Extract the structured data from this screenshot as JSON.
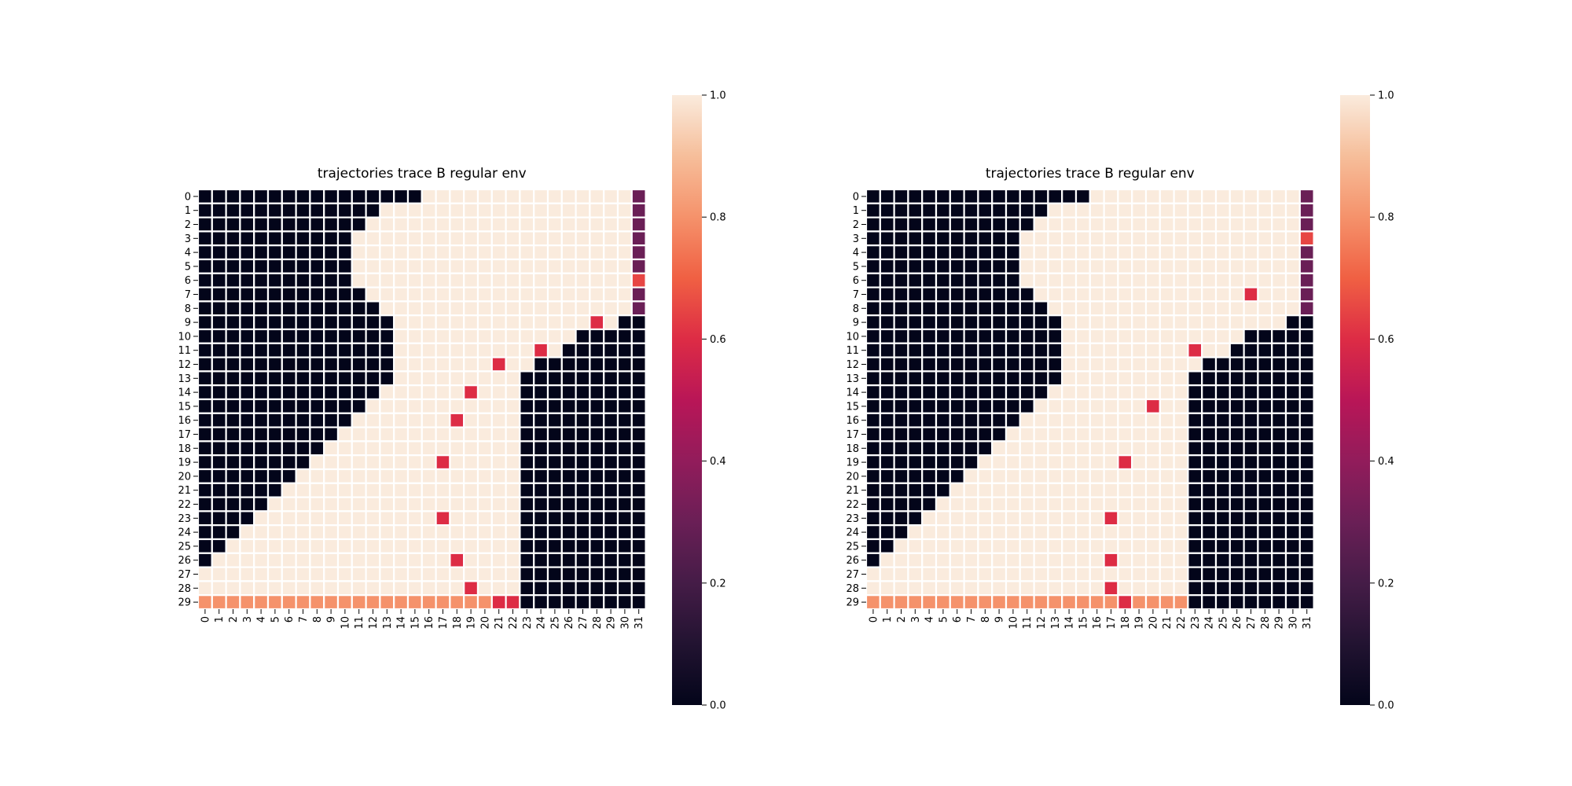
{
  "chart_data": [
    {
      "type": "heatmap",
      "title": "trajectories trace B regular env",
      "rows": [
        "0",
        "1",
        "2",
        "3",
        "4",
        "5",
        "6",
        "7",
        "8",
        "9",
        "10",
        "11",
        "12",
        "13",
        "14",
        "15",
        "16",
        "17",
        "18",
        "19",
        "20",
        "21",
        "22",
        "23",
        "24",
        "25",
        "26",
        "27",
        "28",
        "29"
      ],
      "cols": [
        "0",
        "1",
        "2",
        "3",
        "4",
        "5",
        "6",
        "7",
        "8",
        "9",
        "10",
        "11",
        "12",
        "13",
        "14",
        "15",
        "16",
        "17",
        "18",
        "19",
        "20",
        "21",
        "22",
        "23",
        "24",
        "25",
        "26",
        "27",
        "28",
        "29",
        "30",
        "31"
      ],
      "cells": {
        "dark": [
          [
            15,
            11
          ],
          [
            12,
            11
          ],
          [
            10,
            11
          ],
          [
            10,
            11
          ],
          [
            10,
            11
          ],
          [
            10,
            11
          ],
          [
            10,
            11
          ],
          [
            11,
            11
          ],
          [
            12,
            11
          ],
          [
            13,
            11
          ],
          [
            13,
            12
          ],
          [
            13,
            15
          ],
          [
            13,
            15
          ],
          [
            13,
            15
          ],
          [
            12,
            15
          ],
          [
            11,
            15
          ],
          [
            10,
            15
          ],
          [
            9,
            15
          ],
          [
            8,
            15
          ],
          [
            7,
            15
          ],
          [
            6,
            15
          ],
          [
            5,
            15
          ],
          [
            4,
            15
          ],
          [
            3,
            15
          ],
          [
            2,
            15
          ],
          [
            1,
            15
          ],
          [
            0,
            15
          ],
          [
            -1,
            15
          ],
          [
            -1,
            15
          ],
          [
            -1,
            15
          ]
        ],
        "region_dark": [
          [],
          [],
          [],
          [],
          [],
          [],
          [],
          [],
          [],
          [
            30
          ],
          [
            27,
            28,
            29,
            30
          ],
          [
            26,
            27,
            28,
            29,
            30
          ],
          [
            24,
            25,
            26,
            27,
            28,
            29,
            30
          ],
          [
            23,
            24,
            25,
            26,
            27,
            28,
            29,
            30
          ],
          [
            23,
            24,
            25,
            26,
            27,
            28,
            29,
            30
          ],
          [
            23,
            24,
            25,
            26,
            27,
            28,
            29,
            30
          ],
          [
            23,
            24,
            25,
            26,
            27,
            28,
            29,
            30
          ],
          [
            23,
            24,
            25,
            26,
            27,
            28,
            29,
            30
          ],
          [
            23,
            24,
            25,
            26,
            27,
            28,
            29,
            30
          ],
          [
            23,
            24,
            25,
            26,
            27,
            28,
            29,
            30
          ],
          [
            23,
            24,
            25,
            26,
            27,
            28,
            29,
            30
          ],
          [
            23,
            24,
            25,
            26,
            27,
            28,
            29,
            30
          ],
          [
            23,
            24,
            25,
            26,
            27,
            28,
            29,
            30
          ],
          [
            23,
            24,
            25,
            26,
            27,
            28,
            29,
            30
          ],
          [
            23,
            24,
            25,
            26,
            27,
            28,
            29,
            30
          ],
          [
            23,
            24,
            25,
            26,
            27,
            28,
            29,
            30
          ],
          [
            23,
            24,
            25,
            26,
            27,
            28,
            29,
            30
          ],
          [
            23,
            24,
            25,
            26,
            27,
            28,
            29,
            30
          ],
          [
            23,
            24,
            25,
            26,
            27,
            28,
            29,
            30
          ],
          [
            23,
            24,
            25,
            26,
            27,
            28,
            29,
            30
          ]
        ],
        "last_col": [
          0.3,
          0.3,
          0.3,
          0.3,
          0.3,
          0.3,
          0.65,
          0.3,
          0.3,
          0,
          0,
          0,
          0,
          0,
          0,
          0,
          0,
          0,
          0,
          0,
          0,
          0,
          0,
          0,
          0,
          0,
          0,
          0,
          0,
          0
        ],
        "bottom_row": {
          "value": 0.8,
          "from": 0,
          "to": 22,
          "overrides": [
            [
              21,
              0.6
            ],
            [
              22,
              0.6
            ]
          ]
        },
        "highlights": [
          [
            9,
            28,
            0.6
          ],
          [
            11,
            24,
            0.6
          ],
          [
            12,
            21,
            0.6
          ],
          [
            14,
            19,
            0.6
          ],
          [
            16,
            18,
            0.6
          ],
          [
            19,
            17,
            0.6
          ],
          [
            23,
            17,
            0.6
          ],
          [
            26,
            18,
            0.6
          ],
          [
            28,
            19,
            0.6
          ]
        ]
      },
      "colorbar": {
        "min": 0.0,
        "max": 1.0,
        "ticks": [
          "0.0",
          "0.2",
          "0.4",
          "0.6",
          "0.8",
          "1.0"
        ]
      }
    },
    {
      "type": "heatmap",
      "title": "trajectories trace B regular env",
      "rows": [
        "0",
        "1",
        "2",
        "3",
        "4",
        "5",
        "6",
        "7",
        "8",
        "9",
        "10",
        "11",
        "12",
        "13",
        "14",
        "15",
        "16",
        "17",
        "18",
        "19",
        "20",
        "21",
        "22",
        "23",
        "24",
        "25",
        "26",
        "27",
        "28",
        "29"
      ],
      "cols": [
        "0",
        "1",
        "2",
        "3",
        "4",
        "5",
        "6",
        "7",
        "8",
        "9",
        "10",
        "11",
        "12",
        "13",
        "14",
        "15",
        "16",
        "17",
        "18",
        "19",
        "20",
        "21",
        "22",
        "23",
        "24",
        "25",
        "26",
        "27",
        "28",
        "29",
        "30",
        "31"
      ],
      "cells": {
        "dark": [
          [
            15,
            11
          ],
          [
            12,
            11
          ],
          [
            11,
            11
          ],
          [
            10,
            11
          ],
          [
            10,
            11
          ],
          [
            10,
            11
          ],
          [
            10,
            11
          ],
          [
            11,
            11
          ],
          [
            12,
            11
          ],
          [
            13,
            11
          ],
          [
            13,
            15
          ],
          [
            13,
            15
          ],
          [
            13,
            15
          ],
          [
            13,
            15
          ],
          [
            12,
            15
          ],
          [
            11,
            15
          ],
          [
            10,
            15
          ],
          [
            9,
            15
          ],
          [
            8,
            15
          ],
          [
            7,
            15
          ],
          [
            6,
            15
          ],
          [
            5,
            15
          ],
          [
            4,
            15
          ],
          [
            3,
            15
          ],
          [
            2,
            15
          ],
          [
            1,
            15
          ],
          [
            0,
            15
          ],
          [
            -1,
            15
          ],
          [
            -1,
            15
          ],
          [
            -1,
            15
          ]
        ],
        "region_dark": [
          [],
          [],
          [],
          [],
          [],
          [],
          [],
          [],
          [],
          [
            30
          ],
          [
            27,
            28,
            29,
            30
          ],
          [
            26,
            27,
            28,
            29,
            30
          ],
          [
            24,
            25,
            26,
            27,
            28,
            29,
            30
          ],
          [
            23,
            24,
            25,
            26,
            27,
            28,
            29,
            30
          ],
          [
            23,
            24,
            25,
            26,
            27,
            28,
            29,
            30
          ],
          [
            23,
            24,
            25,
            26,
            27,
            28,
            29,
            30
          ],
          [
            23,
            24,
            25,
            26,
            27,
            28,
            29,
            30
          ],
          [
            23,
            24,
            25,
            26,
            27,
            28,
            29,
            30
          ],
          [
            23,
            24,
            25,
            26,
            27,
            28,
            29,
            30
          ],
          [
            23,
            24,
            25,
            26,
            27,
            28,
            29,
            30
          ],
          [
            23,
            24,
            25,
            26,
            27,
            28,
            29,
            30
          ],
          [
            23,
            24,
            25,
            26,
            27,
            28,
            29,
            30
          ],
          [
            23,
            24,
            25,
            26,
            27,
            28,
            29,
            30
          ],
          [
            23,
            24,
            25,
            26,
            27,
            28,
            29,
            30
          ],
          [
            23,
            24,
            25,
            26,
            27,
            28,
            29,
            30
          ],
          [
            23,
            24,
            25,
            26,
            27,
            28,
            29,
            30
          ],
          [
            23,
            24,
            25,
            26,
            27,
            28,
            29,
            30
          ],
          [
            23,
            24,
            25,
            26,
            27,
            28,
            29,
            30
          ],
          [
            23,
            24,
            25,
            26,
            27,
            28,
            29,
            30
          ],
          [
            23,
            24,
            25,
            26,
            27,
            28,
            29,
            30
          ]
        ],
        "last_col": [
          0.3,
          0.3,
          0.3,
          0.65,
          0.3,
          0.3,
          0.3,
          0.3,
          0.3,
          0,
          0,
          0,
          0,
          0,
          0,
          0,
          0,
          0,
          0,
          0,
          0,
          0,
          0,
          0,
          0,
          0,
          0,
          0,
          0,
          0
        ],
        "bottom_row": {
          "value": 0.8,
          "from": 0,
          "to": 22,
          "overrides": [
            [
              18,
              0.6
            ]
          ]
        },
        "highlights": [
          [
            7,
            27,
            0.6
          ],
          [
            11,
            23,
            0.6
          ],
          [
            15,
            20,
            0.6
          ],
          [
            19,
            18,
            0.6
          ],
          [
            23,
            17,
            0.6
          ],
          [
            26,
            17,
            0.6
          ],
          [
            28,
            17,
            0.6
          ]
        ]
      },
      "colorbar": {
        "min": 0.0,
        "max": 1.0,
        "ticks": [
          "0.0",
          "0.2",
          "0.4",
          "0.6",
          "0.8",
          "1.0"
        ]
      }
    }
  ]
}
